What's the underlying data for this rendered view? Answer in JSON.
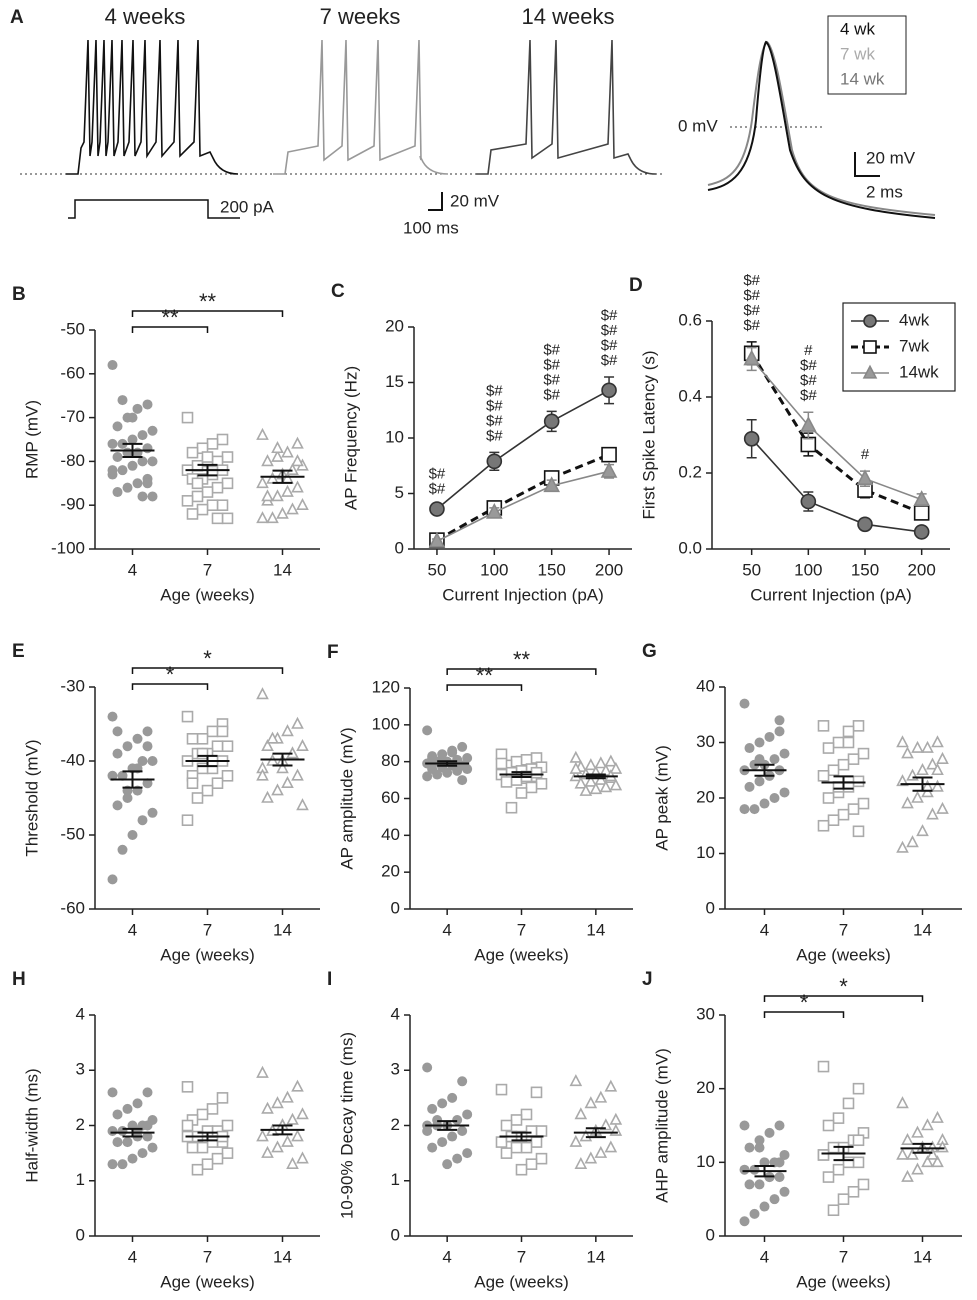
{
  "panel_a": {
    "label": "A",
    "titles": [
      "4 weeks",
      "7 weeks",
      "14 weeks"
    ],
    "legend": [
      "4 wk",
      "7 wk",
      "14 wk"
    ],
    "stim_scale": "200 pA",
    "v_scale": "20 mV",
    "t_scale": "100 ms",
    "zero": "0 mV",
    "ap_v_scale": "20 mV",
    "ap_t_scale": "2 ms"
  },
  "chart_data": [
    {
      "type": "dot",
      "label": "B",
      "ylabel": "RMP (mV)",
      "xlabel": "Age (weeks)",
      "categories": [
        "4",
        "7",
        "14"
      ],
      "ylim": [
        -100,
        -50
      ],
      "yticks": [
        -100,
        -90,
        -80,
        -70,
        -60,
        -50
      ],
      "groups": [
        {
          "marker": "circle",
          "color": "#999999",
          "values": [
            -58,
            -67,
            -68,
            -70,
            -72,
            -73,
            -74,
            -75,
            -76,
            -76,
            -77,
            -78,
            -78,
            -79,
            -80,
            -80,
            -81,
            -82,
            -83,
            -84,
            -85,
            -86,
            -87,
            -88,
            -88,
            -70,
            -66,
            -82,
            -85
          ],
          "mean": -77.5,
          "sem": 1.5
        },
        {
          "marker": "square",
          "color": "#aaaaaa",
          "values": [
            -70,
            -75,
            -76,
            -77,
            -78,
            -79,
            -80,
            -80,
            -81,
            -82,
            -82,
            -83,
            -84,
            -84,
            -85,
            -86,
            -87,
            -88,
            -89,
            -90,
            -90,
            -91,
            -92,
            -93,
            -93,
            -79,
            -85
          ],
          "mean": -82,
          "sem": 1.2
        },
        {
          "marker": "triangle",
          "color": "#aaaaaa",
          "values": [
            -74,
            -76,
            -78,
            -79,
            -80,
            -81,
            -82,
            -83,
            -84,
            -85,
            -86,
            -87,
            -88,
            -89,
            -90,
            -91,
            -92,
            -93,
            -93,
            -80,
            -84,
            -77,
            -88
          ],
          "mean": -83.5,
          "sem": 1.4
        }
      ],
      "comparisons": [
        {
          "from": 0,
          "to": 1,
          "label": "**"
        },
        {
          "from": 0,
          "to": 2,
          "label": "**"
        }
      ]
    },
    {
      "type": "line",
      "label": "C",
      "ylabel": "AP Frequency (Hz)",
      "xlabel": "Current Injection (pA)",
      "x": [
        50,
        100,
        150,
        200
      ],
      "xlim": [
        30,
        220
      ],
      "xticks": [
        50,
        100,
        150,
        200
      ],
      "ylim": [
        0,
        20
      ],
      "yticks": [
        0,
        5,
        10,
        15,
        20
      ],
      "series": [
        {
          "marker": "circle",
          "color": "#333333",
          "fill": "#777777",
          "dash": false,
          "values": [
            3.6,
            7.9,
            11.5,
            14.3
          ],
          "errors": [
            0.3,
            0.8,
            0.9,
            1.2
          ]
        },
        {
          "marker": "square",
          "color": "#111111",
          "fill": "#ffffff",
          "dash": true,
          "values": [
            0.8,
            3.7,
            6.4,
            8.5
          ],
          "errors": [
            0.2,
            0.4,
            0.5,
            0.6
          ]
        },
        {
          "marker": "triangle",
          "color": "#888888",
          "fill": "#999999",
          "dash": false,
          "values": [
            0.7,
            3.3,
            5.7,
            7.0
          ],
          "errors": [
            0.2,
            0.4,
            0.5,
            0.6
          ]
        }
      ],
      "sig_labels": [
        [
          "$#",
          "$#"
        ],
        [
          "$#",
          "$#",
          "$#",
          "$#"
        ],
        [
          "$#",
          "$#",
          "$#",
          "$#"
        ],
        [
          "$#",
          "$#",
          "$#",
          "$#"
        ]
      ]
    },
    {
      "type": "line",
      "label": "D",
      "ylabel": "First Spike Latency (s)",
      "xlabel": "Current Injection (pA)",
      "x": [
        50,
        100,
        150,
        200
      ],
      "xlim": [
        15,
        225
      ],
      "xticks": [
        50,
        100,
        150,
        200
      ],
      "ylim": [
        0,
        0.6
      ],
      "yticks": [
        {
          "value": 0,
          "label": "0.0"
        },
        0.2,
        0.4,
        0.6
      ],
      "legend": "upper right",
      "series": [
        {
          "name": "4wk",
          "marker": "circle",
          "color": "#333333",
          "fill": "#777777",
          "dash": false,
          "values": [
            0.29,
            0.125,
            0.065,
            0.045
          ],
          "errors": [
            0.05,
            0.025,
            0.01,
            0.01
          ]
        },
        {
          "name": "7wk",
          "marker": "square",
          "color": "#111111",
          "fill": "#ffffff",
          "dash": true,
          "values": [
            0.515,
            0.275,
            0.155,
            0.095
          ],
          "errors": [
            0.03,
            0.03,
            0.02,
            0.015
          ]
        },
        {
          "name": "14wk",
          "marker": "triangle",
          "color": "#888888",
          "fill": "#999999",
          "dash": false,
          "values": [
            0.5,
            0.325,
            0.185,
            0.13
          ],
          "errors": [
            0.03,
            0.035,
            0.02,
            0.015
          ]
        }
      ],
      "sig_labels": [
        [
          "$#",
          "$#",
          "$#",
          "$#"
        ],
        [
          "#",
          "$#",
          "$#",
          "$#"
        ],
        [
          "#"
        ],
        null
      ]
    },
    {
      "type": "dot",
      "label": "E",
      "ylabel": "Threshold (mV)",
      "xlabel": "Age (weeks)",
      "categories": [
        "4",
        "7",
        "14"
      ],
      "ylim": [
        -60,
        -30
      ],
      "yticks": [
        -60,
        -50,
        -40,
        -30
      ],
      "groups": [
        {
          "marker": "circle",
          "color": "#999999",
          "values": [
            -34,
            -36,
            -37,
            -38,
            -39,
            -40,
            -40,
            -41,
            -42,
            -42,
            -43,
            -44,
            -45,
            -46,
            -47,
            -48,
            -50,
            -52,
            -56,
            -38,
            -41,
            -44,
            -36
          ],
          "mean": -42.5,
          "sem": 1.1
        },
        {
          "marker": "square",
          "color": "#aaaaaa",
          "values": [
            -34,
            -35,
            -36,
            -37,
            -37,
            -38,
            -38,
            -39,
            -39,
            -40,
            -40,
            -41,
            -41,
            -42,
            -42,
            -43,
            -44,
            -45,
            -48,
            -36,
            -40,
            -39,
            -43
          ],
          "mean": -40,
          "sem": 0.7
        },
        {
          "marker": "triangle",
          "color": "#aaaaaa",
          "values": [
            -31,
            -35,
            -36,
            -37,
            -38,
            -38,
            -39,
            -40,
            -40,
            -41,
            -42,
            -43,
            -44,
            -45,
            -46,
            -39,
            -41,
            -37,
            -42
          ],
          "mean": -39.8,
          "sem": 0.8
        }
      ],
      "comparisons": [
        {
          "from": 0,
          "to": 1,
          "label": "*"
        },
        {
          "from": 0,
          "to": 2,
          "label": "*"
        }
      ]
    },
    {
      "type": "dot",
      "label": "F",
      "ylabel": "AP amplitude (mV)",
      "xlabel": "Age (weeks)",
      "categories": [
        "4",
        "7",
        "14"
      ],
      "ylim": [
        0,
        120
      ],
      "yticks": [
        0,
        20,
        40,
        60,
        80,
        100,
        120
      ],
      "groups": [
        {
          "marker": "circle",
          "color": "#999999",
          "values": [
            97,
            88,
            86,
            84,
            83,
            82,
            81,
            80,
            80,
            79,
            78,
            78,
            77,
            76,
            76,
            75,
            74,
            73,
            72,
            70,
            85,
            79,
            82
          ],
          "mean": 79,
          "sem": 1.2
        },
        {
          "marker": "square",
          "color": "#aaaaaa",
          "values": [
            84,
            82,
            81,
            80,
            78,
            77,
            76,
            75,
            74,
            73,
            72,
            71,
            70,
            69,
            68,
            66,
            63,
            55,
            79,
            74,
            72
          ],
          "mean": 73,
          "sem": 1.3
        },
        {
          "marker": "triangle",
          "color": "#aaaaaa",
          "values": [
            82,
            80,
            79,
            78,
            77,
            76,
            75,
            74,
            73,
            72,
            71,
            70,
            69,
            68,
            67,
            66,
            65,
            64,
            76,
            72
          ],
          "mean": 72,
          "sem": 1.0
        }
      ],
      "comparisons": [
        {
          "from": 0,
          "to": 1,
          "label": "**"
        },
        {
          "from": 0,
          "to": 2,
          "label": "**"
        }
      ]
    },
    {
      "type": "dot",
      "label": "G",
      "ylabel": "AP peak (mV)",
      "xlabel": "Age (weeks)",
      "categories": [
        "4",
        "7",
        "14"
      ],
      "ylim": [
        0,
        40
      ],
      "yticks": [
        0,
        10,
        20,
        30,
        40
      ],
      "groups": [
        {
          "marker": "circle",
          "color": "#999999",
          "values": [
            37,
            34,
            31,
            30,
            29,
            28,
            27,
            26,
            26,
            25,
            25,
            24,
            23,
            22,
            21,
            20,
            19,
            18,
            18,
            32,
            24,
            27
          ],
          "mean": 25,
          "sem": 1.0
        },
        {
          "marker": "square",
          "color": "#aaaaaa",
          "values": [
            33,
            33,
            32,
            30,
            29,
            28,
            27,
            26,
            25,
            24,
            23,
            22,
            21,
            20,
            19,
            18,
            17,
            16,
            15,
            14,
            30,
            22
          ],
          "mean": 22.8,
          "sem": 1.1
        },
        {
          "marker": "triangle",
          "color": "#aaaaaa",
          "values": [
            30,
            30,
            29,
            29,
            28,
            27,
            26,
            25,
            24,
            23,
            22,
            21,
            20,
            19,
            18,
            17,
            14,
            12,
            11,
            25,
            22
          ],
          "mean": 22.5,
          "sem": 1.2
        }
      ],
      "comparisons": []
    },
    {
      "type": "dot",
      "label": "H",
      "ylabel": "Half-width (ms)",
      "xlabel": "Age (weeks)",
      "categories": [
        "4",
        "7",
        "14"
      ],
      "ylim": [
        0,
        4
      ],
      "yticks": [
        0,
        1,
        2,
        3,
        4
      ],
      "groups": [
        {
          "marker": "circle",
          "color": "#999999",
          "values": [
            2.6,
            2.6,
            2.4,
            2.3,
            2.2,
            2.1,
            2,
            2,
            1.9,
            1.9,
            1.8,
            1.8,
            1.7,
            1.7,
            1.6,
            1.5,
            1.4,
            1.3,
            1.3,
            2.0,
            1.9
          ],
          "mean": 1.87,
          "sem": 0.07
        },
        {
          "marker": "square",
          "color": "#aaaaaa",
          "values": [
            2.7,
            2.5,
            2.3,
            2.2,
            2.1,
            2.0,
            1.9,
            1.9,
            1.8,
            1.8,
            1.7,
            1.7,
            1.6,
            1.6,
            1.5,
            1.4,
            1.3,
            1.2,
            2.0,
            1.8
          ],
          "mean": 1.8,
          "sem": 0.07
        },
        {
          "marker": "triangle",
          "color": "#aaaaaa",
          "values": [
            2.95,
            2.7,
            2.5,
            2.4,
            2.3,
            2.2,
            2.1,
            2.0,
            1.9,
            1.8,
            1.8,
            1.7,
            1.6,
            1.5,
            1.4,
            1.3,
            2.0,
            1.9
          ],
          "mean": 1.92,
          "sem": 0.08
        }
      ],
      "comparisons": []
    },
    {
      "type": "dot",
      "label": "I",
      "ylabel": "10-90% Decay time (ms)",
      "xlabel": "Age (weeks)",
      "categories": [
        "4",
        "7",
        "14"
      ],
      "ylim": [
        0,
        4
      ],
      "yticks": [
        0,
        1,
        2,
        3,
        4
      ],
      "groups": [
        {
          "marker": "circle",
          "color": "#999999",
          "values": [
            3.05,
            2.8,
            2.5,
            2.4,
            2.3,
            2.2,
            2.1,
            2.0,
            2.0,
            1.9,
            1.9,
            1.8,
            1.7,
            1.6,
            1.5,
            1.4,
            1.3,
            2.1,
            2.0
          ],
          "mean": 2.0,
          "sem": 0.08
        },
        {
          "marker": "square",
          "color": "#aaaaaa",
          "values": [
            2.65,
            2.6,
            2.2,
            2.1,
            2.0,
            1.9,
            1.9,
            1.8,
            1.8,
            1.7,
            1.7,
            1.6,
            1.6,
            1.5,
            1.4,
            1.3,
            1.2,
            1.8
          ],
          "mean": 1.8,
          "sem": 0.07
        },
        {
          "marker": "triangle",
          "color": "#aaaaaa",
          "values": [
            2.8,
            2.7,
            2.5,
            2.4,
            2.2,
            2.1,
            2.0,
            1.9,
            1.8,
            1.7,
            1.6,
            1.5,
            1.4,
            1.3,
            1.9
          ],
          "mean": 1.87,
          "sem": 0.08
        }
      ],
      "comparisons": []
    },
    {
      "type": "dot",
      "label": "J",
      "ylabel": "AHP amplitude (mV)",
      "xlabel": "Age (weeks)",
      "categories": [
        "4",
        "7",
        "14"
      ],
      "ylim": [
        0,
        30
      ],
      "yticks": [
        0,
        10,
        20,
        30
      ],
      "groups": [
        {
          "marker": "circle",
          "color": "#999999",
          "values": [
            15,
            15,
            14,
            13,
            12,
            11,
            10,
            10,
            9,
            9,
            8,
            8,
            7,
            7,
            6,
            5,
            4,
            3,
            2,
            10,
            8,
            12
          ],
          "mean": 8.8,
          "sem": 0.7
        },
        {
          "marker": "square",
          "color": "#aaaaaa",
          "values": [
            23,
            20,
            18,
            16,
            15,
            14,
            13,
            12,
            12,
            11,
            10,
            10,
            9,
            8,
            7,
            6,
            5,
            3.5,
            11,
            13
          ],
          "mean": 11.2,
          "sem": 0.9
        },
        {
          "marker": "triangle",
          "color": "#aaaaaa",
          "values": [
            18,
            16,
            15,
            14,
            13,
            13,
            12,
            12,
            11,
            11,
            10,
            10,
            9,
            8,
            12,
            11
          ],
          "mean": 11.9,
          "sem": 0.6
        }
      ],
      "comparisons": [
        {
          "from": 0,
          "to": 1,
          "label": "*"
        },
        {
          "from": 0,
          "to": 2,
          "label": "*"
        }
      ]
    }
  ]
}
